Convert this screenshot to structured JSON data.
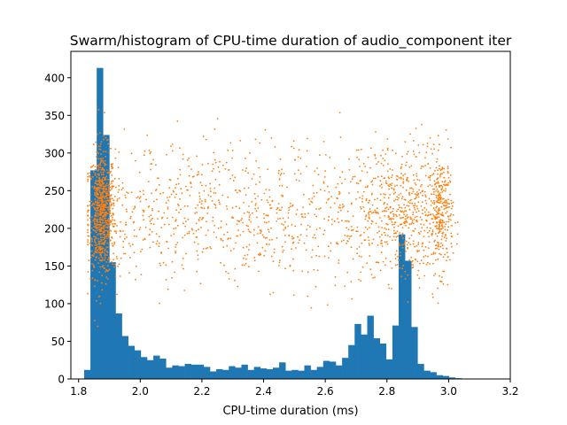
{
  "chart_data": {
    "type": "bar",
    "title": "Swarm/histogram of CPU-time duration of audio_component iter",
    "xlabel": "CPU-time duration (ms)",
    "ylabel": "",
    "xlim": [
      1.775,
      3.2
    ],
    "ylim": [
      0,
      435
    ],
    "x_ticks": [
      1.8,
      2.0,
      2.2,
      2.4,
      2.6,
      2.8,
      3.0,
      3.2
    ],
    "x_tick_labels": [
      "1.8",
      "2.0",
      "2.2",
      "2.4",
      "2.6",
      "2.8",
      "3.0",
      "3.2"
    ],
    "y_ticks": [
      0,
      50,
      100,
      150,
      200,
      250,
      300,
      350,
      400
    ],
    "y_tick_labels": [
      "0",
      "50",
      "100",
      "150",
      "200",
      "250",
      "300",
      "350",
      "400"
    ],
    "grid": false,
    "histogram": {
      "color": "#1f77b4",
      "bin_start": 1.818,
      "bin_width": 0.0204,
      "counts": [
        12,
        277,
        413,
        324,
        155,
        87,
        57,
        44,
        38,
        29,
        25,
        31,
        27,
        15,
        18,
        17,
        20,
        19,
        19,
        16,
        10,
        13,
        12,
        17,
        15,
        19,
        12,
        16,
        14,
        13,
        15,
        22,
        11,
        12,
        11,
        18,
        12,
        16,
        24,
        23,
        18,
        28,
        45,
        73,
        59,
        84,
        54,
        47,
        26,
        71,
        192,
        157,
        69,
        20,
        11,
        9,
        5,
        4,
        2,
        1
      ]
    },
    "swarm": {
      "color": "#ff7f0e",
      "y_center": 220,
      "clusters": [
        {
          "x_center": 1.875,
          "x_spread": 0.022,
          "n": 700,
          "y_spread": 42
        },
        {
          "x_center": 2.84,
          "x_spread": 0.055,
          "n": 280,
          "y_spread": 45
        },
        {
          "x_center": 2.975,
          "x_spread": 0.02,
          "n": 320,
          "y_spread": 38
        },
        {
          "x_center": 2.4,
          "x_spread": 0.55,
          "n": 1100,
          "y_spread": 45
        }
      ]
    }
  }
}
